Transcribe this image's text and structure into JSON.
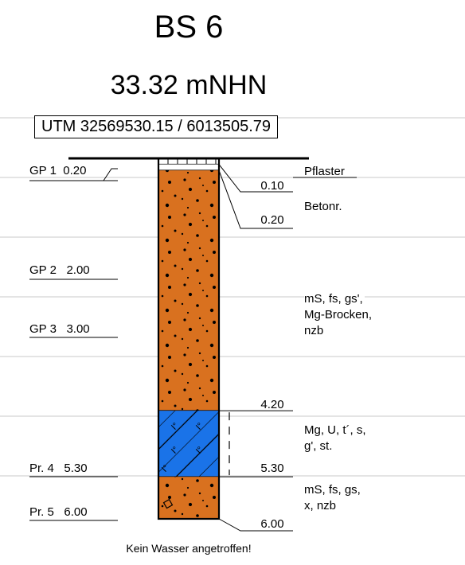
{
  "borehole": {
    "name": "BS 6",
    "elevation": "33.32 mNHN",
    "coordinates": "UTM 32569530.15 / 6013505.79",
    "note": "Kein Wasser angetroffen!"
  },
  "colors": {
    "sand": "#d9711f",
    "marl": "#1a73e8",
    "line": "#000000",
    "grid": "#c8c8c8"
  },
  "samples": [
    {
      "label": "GP 1",
      "depth": "0.20"
    },
    {
      "label": "GP 2",
      "depth": "2.00"
    },
    {
      "label": "GP 3",
      "depth": "3.00"
    },
    {
      "label": "Pr. 4",
      "depth": "5.30"
    },
    {
      "label": "Pr. 5",
      "depth": "6.00"
    }
  ],
  "layer_depths": [
    "0.10",
    "0.20",
    "4.20",
    "5.30",
    "6.00"
  ],
  "descriptions": [
    {
      "lines": [
        "Pflaster"
      ]
    },
    {
      "lines": [
        "Betonr."
      ]
    },
    {
      "lines": [
        "mS, fs, gs',",
        "Mg-Brocken,",
        "nzb"
      ]
    },
    {
      "lines": [
        "Mg, U, t´, s,",
        "g', st."
      ]
    },
    {
      "lines": [
        "mS, fs, gs,",
        "x, nzb"
      ]
    }
  ],
  "layers": [
    {
      "name": "Pflaster",
      "top": 0.0,
      "bottom": 0.1,
      "pattern": "paving"
    },
    {
      "name": "Betonr.",
      "top": 0.1,
      "bottom": 0.2,
      "pattern": "white"
    },
    {
      "name": "Sand",
      "top": 0.2,
      "bottom": 4.2,
      "pattern": "sand"
    },
    {
      "name": "Mergel",
      "top": 4.2,
      "bottom": 5.3,
      "pattern": "marl"
    },
    {
      "name": "Sand",
      "top": 5.3,
      "bottom": 6.0,
      "pattern": "sand"
    }
  ],
  "marl_symbol": "I°"
}
